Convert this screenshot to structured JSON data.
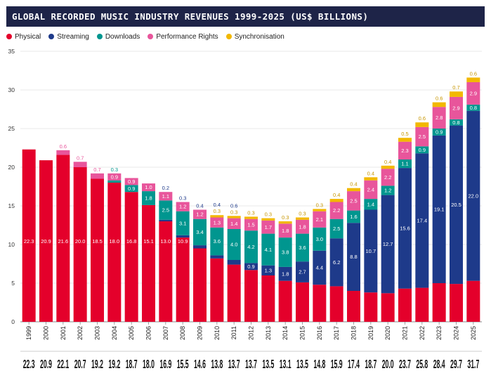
{
  "title": "GLOBAL RECORDED MUSIC INDUSTRY REVENUES 1999-2025 (US$ BILLIONS)",
  "colors": {
    "title_bg": "#1e2448",
    "Physical": "#e4002b",
    "Streaming": "#1e3a8a",
    "Downloads": "#00968f",
    "Performance Rights": "#e8559b",
    "Synchronisation": "#f2b800"
  },
  "chart_data": {
    "type": "bar",
    "stacked": true,
    "title": "GLOBAL RECORDED MUSIC INDUSTRY REVENUES 1999-2025 (US$ BILLIONS)",
    "xlabel": "",
    "ylabel": "",
    "ylim": [
      0,
      35
    ],
    "yticks": [
      0,
      5,
      10,
      15,
      20,
      25,
      30,
      35
    ],
    "grid": true,
    "legend_position": "top-left",
    "categories": [
      "1999",
      "2000",
      "2001",
      "2002",
      "2003",
      "2004",
      "2005",
      "2006",
      "2007",
      "2008",
      "2009",
      "2010",
      "2011",
      "2012",
      "2013",
      "2014",
      "2015",
      "2016",
      "2017",
      "2018",
      "2019",
      "2020",
      "2021",
      "2022",
      "2023",
      "2024",
      "2025"
    ],
    "series": [
      {
        "name": "Physical",
        "values": [
          22.3,
          20.9,
          21.6,
          20.0,
          18.5,
          18.0,
          16.8,
          15.1,
          13.0,
          10.9,
          9.5,
          8.2,
          7.4,
          6.7,
          6.0,
          5.3,
          5.1,
          4.8,
          4.6,
          4.0,
          3.8,
          3.7,
          4.3,
          4.4,
          5.0,
          4.9,
          5.3
        ]
      },
      {
        "name": "Streaming",
        "values": [
          null,
          null,
          null,
          null,
          null,
          null,
          null,
          null,
          0.2,
          0.3,
          0.4,
          0.4,
          0.6,
          0.9,
          1.3,
          1.8,
          2.7,
          4.4,
          6.2,
          8.8,
          10.7,
          12.7,
          15.6,
          17.4,
          19.1,
          20.5,
          22.0
        ]
      },
      {
        "name": "Downloads",
        "values": [
          null,
          null,
          null,
          null,
          null,
          0.3,
          0.9,
          1.8,
          2.5,
          3.1,
          3.4,
          3.6,
          4.0,
          4.2,
          4.1,
          3.8,
          3.6,
          3.0,
          2.5,
          1.6,
          1.4,
          1.2,
          1.1,
          0.9,
          0.9,
          0.8,
          0.8
        ]
      },
      {
        "name": "Performance Rights",
        "values": [
          null,
          null,
          0.6,
          0.7,
          0.7,
          0.9,
          0.9,
          1.0,
          1.1,
          1.2,
          1.2,
          1.3,
          1.4,
          1.5,
          1.7,
          1.8,
          1.8,
          2.1,
          2.2,
          2.5,
          2.4,
          2.2,
          2.3,
          2.5,
          2.8,
          2.9,
          2.9
        ]
      },
      {
        "name": "Synchronisation",
        "values": [
          null,
          null,
          null,
          null,
          null,
          null,
          null,
          null,
          null,
          null,
          null,
          0.3,
          0.3,
          0.3,
          0.3,
          0.3,
          0.3,
          0.3,
          0.4,
          0.4,
          0.4,
          0.4,
          0.5,
          0.6,
          0.6,
          0.7,
          0.6
        ]
      }
    ],
    "totals": [
      "22.3",
      "20.9",
      "22.1",
      "20.7",
      "19.2",
      "19.2",
      "18.7",
      "18.0",
      "16.9",
      "15.5",
      "14.6",
      "13.8",
      "13.7",
      "13.7",
      "13.5",
      "13.1",
      "13.5",
      "14.8",
      "15.9",
      "17.4",
      "18.7",
      "20.0",
      "23.7",
      "25.8",
      "28.4",
      "29.7",
      "31.7"
    ]
  }
}
